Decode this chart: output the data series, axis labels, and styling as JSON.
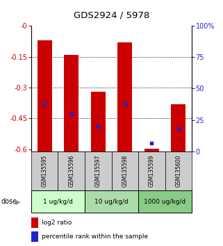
{
  "title": "GDS2924 / 5978",
  "samples": [
    "GSM135595",
    "GSM135596",
    "GSM135597",
    "GSM135598",
    "GSM135599",
    "GSM135600"
  ],
  "bar_tops": [
    -0.07,
    -0.14,
    -0.32,
    -0.08,
    -0.598,
    -0.38
  ],
  "bar_bottom": -0.61,
  "blue_markers": [
    -0.38,
    -0.43,
    -0.49,
    -0.38,
    -0.57,
    -0.5
  ],
  "ylim_left": [
    -0.61,
    0.0
  ],
  "ylim_right": [
    0,
    100
  ],
  "left_ticks": [
    0.0,
    -0.15,
    -0.3,
    -0.45,
    -0.6
  ],
  "left_tick_labels": [
    "-0",
    "-0.15",
    "-0.3",
    "-0.45",
    "-0.6"
  ],
  "right_ticks": [
    0,
    25,
    50,
    75,
    100
  ],
  "right_tick_labels": [
    "0",
    "25",
    "50",
    "75",
    "100%"
  ],
  "bar_color": "#cc0000",
  "blue_color": "#2222cc",
  "dose_groups": [
    {
      "label": "1 ug/kg/d",
      "samples": [
        0,
        1
      ],
      "color": "#ccffcc"
    },
    {
      "label": "10 ug/kg/d",
      "samples": [
        2,
        3
      ],
      "color": "#aaddaa"
    },
    {
      "label": "1000 ug/kg/d",
      "samples": [
        4,
        5
      ],
      "color": "#88cc88"
    }
  ],
  "left_tick_color": "#cc0000",
  "right_tick_color": "#2222cc",
  "sample_label_bg": "#cccccc",
  "bar_width": 0.55
}
